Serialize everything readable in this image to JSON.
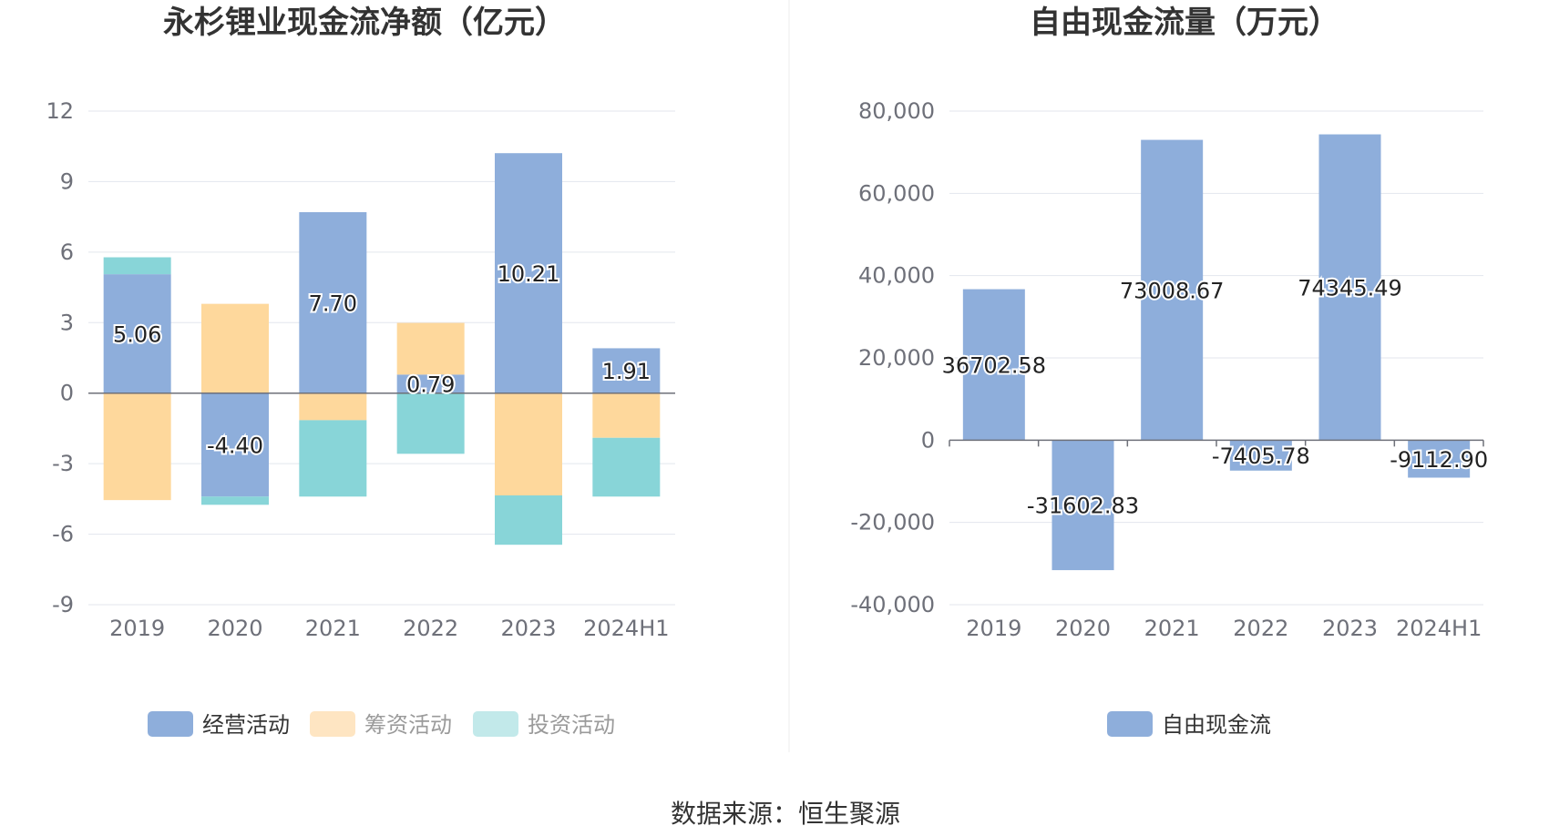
{
  "source": "数据来源：恒生聚源",
  "chart_data": [
    {
      "type": "bar",
      "stacked": true,
      "title": "永杉锂业现金流净额（亿元）",
      "categories": [
        "2019",
        "2020",
        "2021",
        "2022",
        "2023",
        "2024H1"
      ],
      "ylim": [
        -9,
        12
      ],
      "yticks": [
        12,
        9,
        6,
        3,
        0,
        -3,
        -6,
        -9
      ],
      "ytick_labels": [
        "12",
        "9",
        "6",
        "3",
        "0",
        "-3",
        "-6",
        "-9"
      ],
      "grid": true,
      "legend_position": "bottom",
      "series": [
        {
          "name": "经营活动",
          "color": "#8eaedb",
          "values": [
            5.06,
            -4.4,
            7.7,
            0.79,
            10.21,
            1.91
          ],
          "labels": [
            "5.06",
            "-4.40",
            "7.70",
            "0.79",
            "10.21",
            "1.91"
          ]
        },
        {
          "name": "筹资活动",
          "color": "#fed89c",
          "values": [
            -4.55,
            3.8,
            -1.15,
            2.2,
            -4.35,
            -1.9
          ]
        },
        {
          "name": "投资活动",
          "color": "#88d5d8",
          "values": [
            0.72,
            -0.35,
            -3.25,
            -2.58,
            -2.1,
            -2.5
          ]
        }
      ]
    },
    {
      "type": "bar",
      "title": "自由现金流量（万元）",
      "categories": [
        "2019",
        "2020",
        "2021",
        "2022",
        "2023",
        "2024H1"
      ],
      "ylim": [
        -40000,
        80000
      ],
      "yticks": [
        80000,
        60000,
        40000,
        20000,
        0,
        -20000,
        -40000
      ],
      "ytick_labels": [
        "80,000",
        "60,000",
        "40,000",
        "20,000",
        "0",
        "-20,000",
        "-40,000"
      ],
      "grid": true,
      "legend_position": "bottom",
      "series": [
        {
          "name": "自由现金流",
          "color": "#8eaedb",
          "values": [
            36702.58,
            -31602.83,
            73008.67,
            -7405.78,
            74345.49,
            -9112.9
          ],
          "labels": [
            "36702.58",
            "-31602.83",
            "73008.67",
            "-7405.78",
            "74345.49",
            "-9112.90"
          ]
        }
      ]
    }
  ]
}
